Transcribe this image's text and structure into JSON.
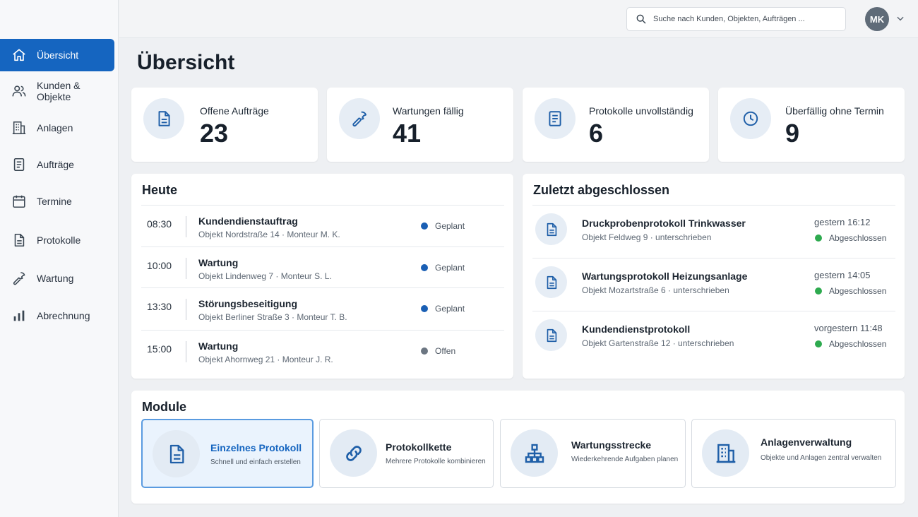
{
  "colors": {
    "accent": "#1565c0",
    "planned": "#1a5fb4",
    "open": "#6c7682",
    "done": "#2eaa4f"
  },
  "sidebar": {
    "items": [
      {
        "label": "Übersicht",
        "icon": "home-icon"
      },
      {
        "label": "Kunden & Objekte",
        "icon": "users-icon"
      },
      {
        "label": "Anlagen",
        "icon": "building-icon"
      },
      {
        "label": "Aufträge",
        "icon": "clipboard-icon"
      },
      {
        "label": "Termine",
        "icon": "calendar-icon"
      },
      {
        "label": "Protokolle",
        "icon": "document-icon"
      },
      {
        "label": "Wartung",
        "icon": "wrench-icon"
      },
      {
        "label": "Abrechnung",
        "icon": "bar-chart-icon"
      }
    ]
  },
  "header": {
    "search_placeholder": "Suche nach Kunden, Objekten, Aufträgen ...",
    "avatar_initials": "MK"
  },
  "page": {
    "title": "Übersicht"
  },
  "stats": [
    {
      "label": "Offene Aufträge",
      "value": "23",
      "icon": "document-icon"
    },
    {
      "label": "Wartungen fällig",
      "value": "41",
      "icon": "wrench-icon"
    },
    {
      "label": "Protokolle unvollständig",
      "value": "6",
      "icon": "document-lines-icon"
    },
    {
      "label": "Überfällig ohne Termin",
      "value": "9",
      "icon": "clock-icon"
    }
  ],
  "today": {
    "title": "Heute",
    "rows": [
      {
        "time": "08:30",
        "title": "Kundendienstauftrag",
        "subtitle": "Objekt Nordstraße 14 · Monteur M. K.",
        "status": "Geplant"
      },
      {
        "time": "10:00",
        "title": "Wartung",
        "subtitle": "Objekt Lindenweg 7 · Monteur S. L.",
        "status": "Geplant"
      },
      {
        "time": "13:30",
        "title": "Störungsbeseitigung",
        "subtitle": "Objekt Berliner Straße 3 · Monteur T. B.",
        "status": "Geplant"
      },
      {
        "time": "15:00",
        "title": "Wartung",
        "subtitle": "Objekt Ahornweg 21 · Monteur J. R.",
        "status": "Offen"
      }
    ]
  },
  "recent": {
    "title": "Zuletzt abgeschlossen",
    "rows": [
      {
        "title": "Druckprobenprotokoll Trinkwasser",
        "subtitle": "Objekt Feldweg 9 · unterschrieben",
        "time": "gestern 16:12",
        "status": "Abgeschlossen"
      },
      {
        "title": "Wartungsprotokoll Heizungsanlage",
        "subtitle": "Objekt Mozartstraße 6 · unterschrieben",
        "time": "gestern 14:05",
        "status": "Abgeschlossen"
      },
      {
        "title": "Kundendienstprotokoll",
        "subtitle": "Objekt Gartenstraße 12 · unterschrieben",
        "time": "vorgestern 11:48",
        "status": "Abgeschlossen"
      }
    ]
  },
  "modules": {
    "title": "Module",
    "items": [
      {
        "title": "Einzelnes Protokoll",
        "subtitle": "Schnell und einfach erstellen",
        "icon": "document-icon"
      },
      {
        "title": "Protokollkette",
        "subtitle": "Mehrere Protokolle kombinieren",
        "icon": "link-icon"
      },
      {
        "title": "Wartungsstrecke",
        "subtitle": "Wiederkehrende Aufgaben planen",
        "icon": "hierarchy-icon"
      },
      {
        "title": "Anlagenverwaltung",
        "subtitle": "Objekte und Anlagen zentral verwalten",
        "icon": "building-icon"
      }
    ]
  }
}
